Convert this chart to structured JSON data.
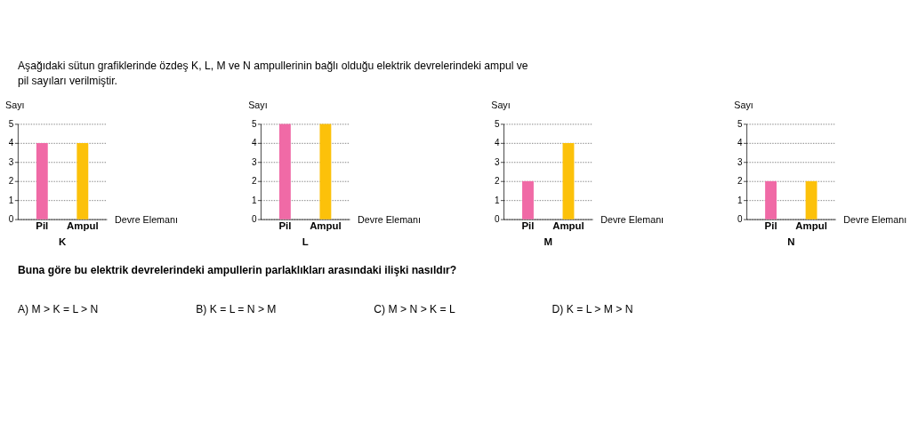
{
  "chart_data": [
    {
      "type": "other",
      "annotations": [
        "Aşağıdaki sütun grafiklerinde özdeş K, L, M ve N ampullerinin bağlı olduğu elektrik devrelerindeki ampul ve\npil sayıları verilmiştir."
      ]
    },
    {
      "type": "bar",
      "title": "K",
      "xlabel": "Devre Elemanı",
      "ylabel": "Sayı",
      "categories": [
        "Pil",
        "Ampul"
      ],
      "values": [
        4,
        4
      ],
      "colors": [
        "#f06aa6",
        "#fcc10a"
      ],
      "ylim": [
        0,
        5
      ],
      "yticks": [
        0,
        1,
        2,
        3,
        4,
        5
      ],
      "grid": "y"
    },
    {
      "type": "bar",
      "title": "L",
      "xlabel": "Devre Elemanı",
      "ylabel": "Sayı",
      "categories": [
        "Pil",
        "Ampul"
      ],
      "values": [
        5,
        5
      ],
      "colors": [
        "#f06aa6",
        "#fcc10a"
      ],
      "ylim": [
        0,
        5
      ],
      "yticks": [
        0,
        1,
        2,
        3,
        4,
        5
      ],
      "grid": "y"
    },
    {
      "type": "bar",
      "title": "M",
      "xlabel": "Devre Elemanı",
      "ylabel": "Sayı",
      "categories": [
        "Pil",
        "Ampul"
      ],
      "values": [
        2,
        4
      ],
      "colors": [
        "#f06aa6",
        "#fcc10a"
      ],
      "ylim": [
        0,
        5
      ],
      "yticks": [
        0,
        1,
        2,
        3,
        4,
        5
      ],
      "grid": "y"
    },
    {
      "type": "bar",
      "title": "N",
      "xlabel": "Devre Elemanı",
      "ylabel": "Sayı",
      "categories": [
        "Pil",
        "Ampul"
      ],
      "values": [
        2,
        2
      ],
      "colors": [
        "#f06aa6",
        "#fcc10a"
      ],
      "ylim": [
        0,
        5
      ],
      "yticks": [
        0,
        1,
        2,
        3,
        4,
        5
      ],
      "grid": "y"
    },
    {
      "type": "other",
      "annotations": [
        "Buna göre bu elektrik devrelerindeki ampullerin parlaklıkları arasındaki ilişki nasıldır?",
        "A) M > K = L > N",
        "B) K = L = N > M",
        "C) M > N > K = L",
        "D) K = L > M > N"
      ]
    }
  ]
}
